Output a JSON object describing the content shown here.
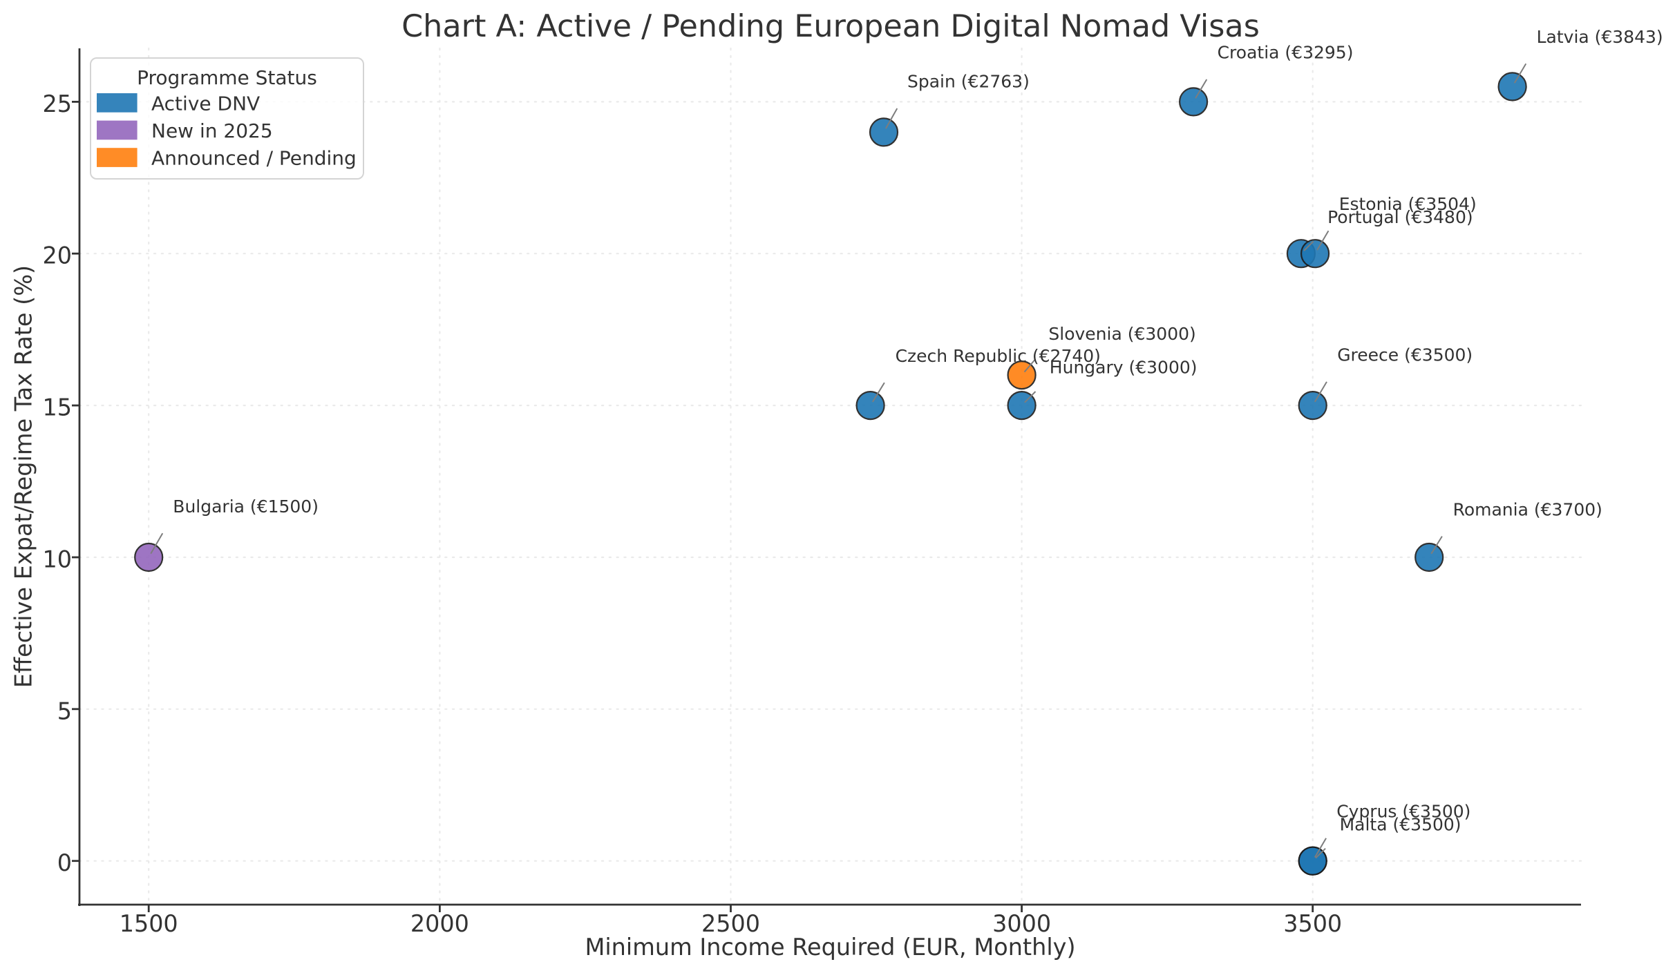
{
  "chart_data": {
    "type": "scatter",
    "title": "Chart A: Active / Pending European Digital Nomad Visas",
    "xlabel": "Minimum Income Required (EUR, Monthly)",
    "ylabel": "Effective Expat/Regime Tax Rate (%)",
    "xlim": [
      1381,
      3961
    ],
    "ylim": [
      -1.44,
      26.76
    ],
    "xticks": [
      1500,
      2000,
      2500,
      3000,
      3500
    ],
    "yticks": [
      0,
      5,
      10,
      15,
      20,
      25
    ],
    "grid": "dotted",
    "legend": {
      "title": "Programme Status",
      "position": "upper-left",
      "entries": [
        {
          "label": "Active DNV",
          "color": "#1f77b4"
        },
        {
          "label": "New in 2025",
          "color": "#9467bd"
        },
        {
          "label": "Announced / Pending",
          "color": "#ff7f0e"
        }
      ]
    },
    "series": [
      {
        "name": "Active DNV",
        "color": "#1f77b4",
        "points": [
          {
            "country": "Czech Republic",
            "income_eur": 2740,
            "tax_rate_pct": 15,
            "label": "Czech Republic (€2740)",
            "label_dx": 36,
            "label_dy": -63
          },
          {
            "country": "Spain",
            "income_eur": 2763,
            "tax_rate_pct": 24,
            "label": "Spain (€2763)",
            "label_dx": 34,
            "label_dy": -65
          },
          {
            "country": "Hungary",
            "income_eur": 3000,
            "tax_rate_pct": 15,
            "label": "Hungary (€3000)",
            "label_dx": 40.2,
            "label_dy": -46.6
          },
          {
            "country": "Croatia",
            "income_eur": 3295,
            "tax_rate_pct": 25,
            "label": "Croatia (€3295)",
            "label_dx": 34.5,
            "label_dy": -62.8
          },
          {
            "country": "Portugal",
            "income_eur": 3480,
            "tax_rate_pct": 20,
            "label": "Portugal (€3480)",
            "label_dx": 38.2,
            "label_dy": -44.1
          },
          {
            "country": "Estonia",
            "income_eur": 3504,
            "tax_rate_pct": 20,
            "label": "Estonia (€3504)",
            "label_dx": 34.6,
            "label_dy": -63.3
          },
          {
            "country": "Greece",
            "income_eur": 3500,
            "tax_rate_pct": 15,
            "label": "Greece (€3500)",
            "label_dx": 35.5,
            "label_dy": -64.6
          },
          {
            "country": "Cyprus",
            "income_eur": 3500,
            "tax_rate_pct": 0,
            "label": "Cyprus (€3500)",
            "label_dx": 34.5,
            "label_dy": -63.4
          },
          {
            "country": "Malta",
            "income_eur": 3500,
            "tax_rate_pct": 0,
            "label": "Malta (€3500)",
            "label_dx": 38.9,
            "label_dy": -44.2
          },
          {
            "country": "Romania",
            "income_eur": 3700,
            "tax_rate_pct": 10,
            "label": "Romania (€3700)",
            "label_dx": 34.4,
            "label_dy": -60.5
          },
          {
            "country": "Latvia",
            "income_eur": 3843,
            "tax_rate_pct": 25.5,
            "label": "Latvia (€3843)",
            "label_dx": 35,
            "label_dy": -63.5
          }
        ]
      },
      {
        "name": "New in 2025",
        "color": "#9467bd",
        "points": [
          {
            "country": "Bulgaria",
            "income_eur": 1500,
            "tax_rate_pct": 10,
            "label": "Bulgaria (€1500)",
            "label_dx": 35.1,
            "label_dy": -65.2
          }
        ]
      },
      {
        "name": "Announced / Pending",
        "color": "#ff7f0e",
        "points": [
          {
            "country": "Slovenia",
            "income_eur": 3000,
            "tax_rate_pct": 16,
            "label": "Slovenia (€3000)",
            "label_dx": 38.8,
            "label_dy": -51
          }
        ]
      }
    ],
    "style": {
      "marker_radius": 20,
      "marker_alpha": 0.9,
      "marker_edge_color": "#1b1b1b",
      "marker_edge_width": 2.2,
      "grid_color": "#eaeaea",
      "spine_color": "#333333",
      "text_color": "#333333",
      "leader_color": "#7d7d7d",
      "background": "#ffffff"
    }
  }
}
